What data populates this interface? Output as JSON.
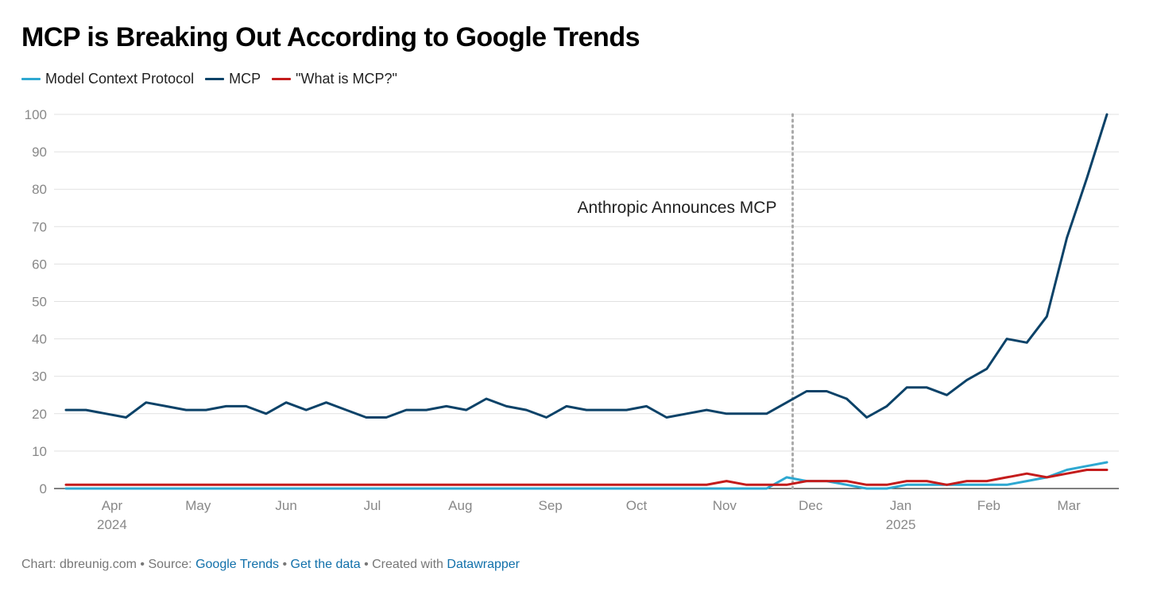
{
  "title": "MCP is Breaking Out According to Google Trends",
  "legend": [
    {
      "label": "Model Context Protocol",
      "color": "#2ea8d1"
    },
    {
      "label": "MCP",
      "color": "#0b4268"
    },
    {
      "label": "\"What is MCP?\"",
      "color": "#c41c1c"
    }
  ],
  "footer": {
    "chart": "Chart: dbreunig.com",
    "sep1": "•",
    "source_label": "Source:",
    "source_link": "Google Trends",
    "sep2": "•",
    "data_link": "Get the data",
    "sep3": "•",
    "created": "Created with",
    "tool_link": "Datawrapper"
  },
  "chart_data": {
    "type": "line",
    "title": "MCP is Breaking Out According to Google Trends",
    "xlabel": "",
    "ylabel": "",
    "ylim": [
      0,
      100
    ],
    "yticks": [
      0,
      10,
      20,
      30,
      40,
      50,
      60,
      70,
      80,
      90,
      100
    ],
    "grid": true,
    "legend_position": "top-left",
    "x_week_index_range": [
      0,
      52
    ],
    "x_month_ticks": [
      {
        "label": "Apr",
        "year": "2024",
        "week": 2.3
      },
      {
        "label": "May",
        "year": "",
        "week": 6.6
      },
      {
        "label": "Jun",
        "year": "",
        "week": 11.0
      },
      {
        "label": "Jul",
        "year": "",
        "week": 15.3
      },
      {
        "label": "Aug",
        "year": "",
        "week": 19.7
      },
      {
        "label": "Sep",
        "year": "",
        "week": 24.2
      },
      {
        "label": "Oct",
        "year": "",
        "week": 28.5
      },
      {
        "label": "Nov",
        "year": "",
        "week": 32.9
      },
      {
        "label": "Dec",
        "year": "",
        "week": 37.2
      },
      {
        "label": "Jan",
        "year": "2025",
        "week": 41.7
      },
      {
        "label": "Feb",
        "year": "",
        "week": 46.1
      },
      {
        "label": "Mar",
        "year": "",
        "week": 50.1
      }
    ],
    "annotation": {
      "label": "Anthropic Announces MCP",
      "week": 36.3
    },
    "series": [
      {
        "name": "Model Context Protocol",
        "color": "#2ea8d1",
        "values": [
          0,
          0,
          0,
          0,
          0,
          0,
          0,
          0,
          0,
          0,
          0,
          0,
          0,
          0,
          0,
          0,
          0,
          0,
          0,
          0,
          0,
          0,
          0,
          0,
          0,
          0,
          0,
          0,
          0,
          0,
          0,
          0,
          0,
          0,
          0,
          0,
          3,
          2,
          2,
          1,
          0,
          0,
          1,
          1,
          1,
          1,
          1,
          1,
          2,
          3,
          5,
          6,
          7
        ]
      },
      {
        "name": "MCP",
        "color": "#0b4268",
        "values": [
          21,
          21,
          20,
          19,
          23,
          22,
          21,
          21,
          22,
          22,
          20,
          23,
          21,
          23,
          21,
          19,
          19,
          21,
          21,
          22,
          21,
          24,
          22,
          21,
          19,
          22,
          21,
          21,
          21,
          22,
          19,
          20,
          21,
          20,
          20,
          20,
          23,
          26,
          26,
          24,
          19,
          22,
          27,
          27,
          25,
          29,
          32,
          40,
          39,
          46,
          67,
          83,
          100
        ]
      },
      {
        "name": "\"What is MCP?\"",
        "color": "#c41c1c",
        "values": [
          1,
          1,
          1,
          1,
          1,
          1,
          1,
          1,
          1,
          1,
          1,
          1,
          1,
          1,
          1,
          1,
          1,
          1,
          1,
          1,
          1,
          1,
          1,
          1,
          1,
          1,
          1,
          1,
          1,
          1,
          1,
          1,
          1,
          2,
          1,
          1,
          1,
          2,
          2,
          2,
          1,
          1,
          2,
          2,
          1,
          2,
          2,
          3,
          4,
          3,
          4,
          5,
          5
        ]
      }
    ]
  }
}
